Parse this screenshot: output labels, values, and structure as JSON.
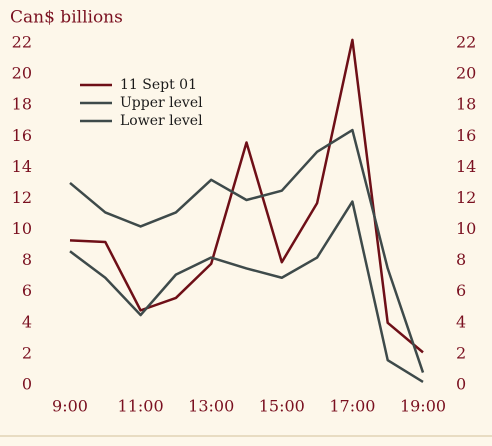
{
  "chart_data": {
    "type": "line",
    "title": "Can$ billions",
    "categories": [
      "9:00",
      null,
      "11:00",
      null,
      "13:00",
      null,
      "15:00",
      null,
      "17:00",
      null,
      "19:00"
    ],
    "series": [
      {
        "name": "11 Sept 01",
        "color": "#6e0f17",
        "values": [
          9.3,
          9.2,
          4.8,
          5.6,
          7.8,
          15.6,
          7.9,
          11.7,
          22.2,
          4.0,
          2.1
        ]
      },
      {
        "name": "Upper level",
        "color": "#3e4a4a",
        "values": [
          13.0,
          11.1,
          10.2,
          11.1,
          13.2,
          11.9,
          12.5,
          15.0,
          16.4,
          7.5,
          0.8
        ]
      },
      {
        "name": "Lower level",
        "color": "#3e4a4a",
        "values": [
          8.6,
          6.9,
          4.5,
          7.1,
          8.2,
          7.5,
          6.9,
          8.2,
          11.8,
          1.6,
          0.2
        ]
      }
    ],
    "ylim": [
      0,
      22
    ],
    "yticks": [
      0,
      2,
      4,
      6,
      8,
      10,
      12,
      14,
      16,
      18,
      20,
      22
    ],
    "legend": "upper left"
  }
}
